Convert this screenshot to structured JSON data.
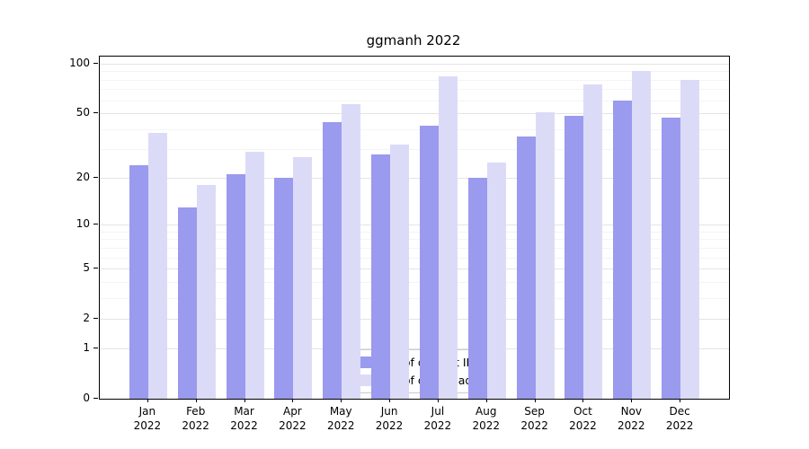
{
  "title": "ggmanh 2022",
  "chart_data": {
    "type": "bar",
    "title": "ggmanh 2022",
    "categories": [
      "Jan",
      "Feb",
      "Mar",
      "Apr",
      "May",
      "Jun",
      "Jul",
      "Aug",
      "Sep",
      "Oct",
      "Nov",
      "Dec"
    ],
    "year_label": "2022",
    "series": [
      {
        "name": "Nb of distinct IPs",
        "color": "#9a9aee",
        "values": [
          24,
          13,
          21,
          20,
          44,
          28,
          42,
          20,
          36,
          48,
          60,
          47
        ]
      },
      {
        "name": "Nb of downloads",
        "color": "#dbdbf8",
        "values": [
          38,
          18,
          29,
          27,
          57,
          32,
          84,
          25,
          51,
          75,
          90,
          80
        ]
      }
    ],
    "ylabel": "",
    "xlabel": "",
    "scale": "log1p",
    "ylim": [
      0,
      100
    ],
    "yticks": [
      100,
      50,
      20,
      10,
      5,
      2,
      1,
      0
    ],
    "minor_gridlines": [
      3,
      4,
      6,
      7,
      8,
      9,
      30,
      40,
      60,
      70,
      80,
      90
    ],
    "grid": true,
    "legend_position": "lower-center"
  }
}
